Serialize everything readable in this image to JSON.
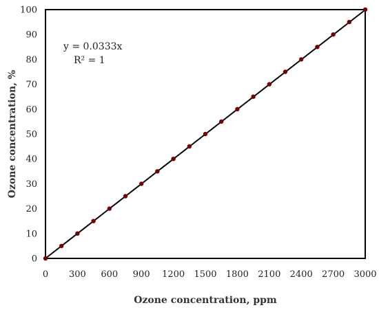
{
  "chart_data": {
    "type": "scatter",
    "title": "",
    "xlabel": "Ozone concentration, ppm",
    "ylabel": "Ozone concentration, %",
    "xlim": [
      0,
      3000
    ],
    "ylim": [
      0,
      100
    ],
    "xticks": [
      0,
      300,
      600,
      900,
      1200,
      1500,
      1800,
      2100,
      2400,
      2700,
      3000
    ],
    "yticks": [
      0,
      10,
      20,
      30,
      40,
      50,
      60,
      70,
      80,
      90,
      100
    ],
    "grid": false,
    "legend": "none",
    "series": [
      {
        "marker_color": "#7a0000",
        "x": [
          0,
          150,
          300,
          450,
          600,
          750,
          900,
          1050,
          1200,
          1350,
          1500,
          1650,
          1800,
          1950,
          2100,
          2250,
          2400,
          2550,
          2700,
          2850,
          3000
        ],
        "y": [
          0,
          5,
          10,
          15,
          20,
          25,
          30,
          35,
          40,
          45,
          50,
          55,
          60,
          65,
          70,
          75,
          80,
          85,
          90,
          95,
          100
        ]
      }
    ],
    "trendline": {
      "type": "linear",
      "slope": 0.0333,
      "intercept": 0,
      "color": "#000000",
      "equation": "y = 0.0333x",
      "r_squared": "R² = 1"
    }
  }
}
